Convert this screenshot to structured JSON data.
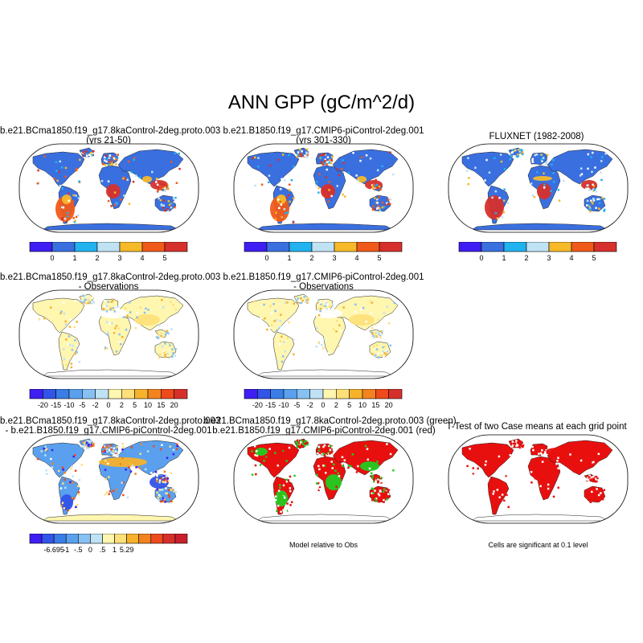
{
  "title": "ANN GPP (gC/m^2/d)",
  "palettes": {
    "abs": [
      "#3e1ef2",
      "#3a6fe0",
      "#21b2ef",
      "#bfe2f5",
      "#f5b92a",
      "#f05a1a",
      "#d6302c"
    ],
    "diff": [
      "#3e1ef2",
      "#3254e8",
      "#3a7de6",
      "#5aa0ee",
      "#86c1f2",
      "#bfe2f5",
      "#fff6b0",
      "#fde07a",
      "#f7b22c",
      "#f2831f",
      "#ee4a1c",
      "#d6302c"
    ],
    "diff3": [
      "#3e1ef2",
      "#3254e8",
      "#3a7de6",
      "#5aa0ee",
      "#86c1f2",
      "#bfe2f5",
      "#fff6b0",
      "#fde07a",
      "#f7b22c",
      "#f2831f",
      "#ee4a1c",
      "#d6302c",
      "#c8202c"
    ],
    "green": "#22cc22",
    "red": "#e8100e"
  },
  "panels": [
    {
      "title1": "b.e21.BCma1850.f19_g17.8kaControl-2deg.proto.003",
      "title2": "(yrs 21-50)",
      "colorbar": {
        "labels": [
          "0",
          "1",
          "2",
          "3",
          "4",
          "5"
        ]
      }
    },
    {
      "title1": "b.e21.B1850.f19_g17.CMIP6-piControl-2deg.001",
      "title2": "(yrs 301-330)",
      "colorbar": {
        "labels": [
          "0",
          "1",
          "2",
          "3",
          "4",
          "5"
        ]
      }
    },
    {
      "title1": "FLUXNET (1982-2008)",
      "title2": "",
      "colorbar": {
        "labels": [
          "0",
          "1",
          "2",
          "3",
          "4",
          "5"
        ]
      }
    },
    {
      "title1": "b.e21.BCma1850.f19_g17.8kaControl-2deg.proto.003",
      "title2": "- Observations",
      "colorbar": {
        "labels": [
          "-20",
          "-15",
          "-10",
          "-5",
          "-2",
          "0",
          "2",
          "5",
          "10",
          "15",
          "20"
        ]
      }
    },
    {
      "title1": "b.e21.B1850.f19_g17.CMIP6-piControl-2deg.001",
      "title2": "- Observations",
      "colorbar": {
        "labels": [
          "-20",
          "-15",
          "-10",
          "-5",
          "-2",
          "0",
          "2",
          "5",
          "10",
          "15",
          "20"
        ]
      }
    },
    {
      "title1": "b.e21.BCma1850.f19_g17.8kaControl-2deg.proto.003",
      "title2": "- b.e21.B1850.f19_g17.CMIP6-piControl-2deg.001",
      "colorbar": {
        "labels": [
          "-6.695",
          "-1",
          "-.5",
          "0",
          ".5",
          "1",
          "5.29"
        ]
      }
    },
    {
      "title1": "b.e21.BCma1850.f19_g17.8kaControl-2deg.proto.003 (green)",
      "title2": "b.e21.B1850.f19_g17.CMIP6-piControl-2deg.001 (red)",
      "note": "Model relative to Obs"
    },
    {
      "title1": "T-Test of two Case means at each grid point",
      "title2": "",
      "note": "Cells are significant at 0.1 level"
    }
  ]
}
